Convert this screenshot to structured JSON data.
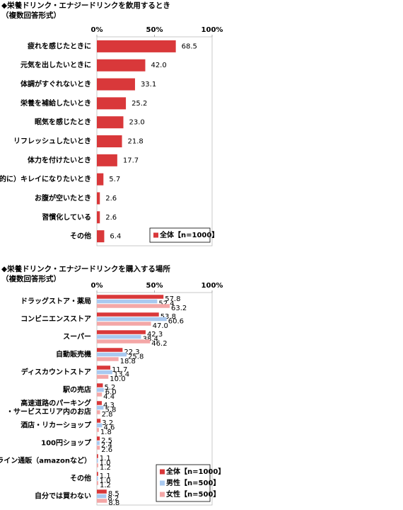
{
  "chart_data": [
    {
      "type": "hbar",
      "title": "◆栄養ドリンク・エナジードリンクを飲用するとき",
      "subtitle": "（複数回答形式）",
      "categories": [
        "疲れを感じたときに",
        "元気を出したいときに",
        "体調がすぐれないとき",
        "栄養を補給したいとき",
        "眠気を感じたとき",
        "リフレッシュしたいとき",
        "体力を付けたいとき",
        "（美容的に）キレイになりたいとき",
        "お腹が空いたとき",
        "習慣化している",
        "その他"
      ],
      "series": [
        {
          "name": "全体【n=1000】",
          "color": "#d9383a",
          "values": [
            68.5,
            42.0,
            33.1,
            25.2,
            23.0,
            21.8,
            17.7,
            5.7,
            2.6,
            2.6,
            6.4
          ],
          "value_labels": [
            "68.5",
            "42.0",
            "33.1",
            "25.2",
            "23.0",
            "21.8",
            "17.7",
            "5.7",
            "2.6",
            "2.6",
            "6.4"
          ]
        }
      ],
      "xlim": [
        0,
        100
      ],
      "xticks": [
        {
          "value": 0,
          "label": "0%"
        },
        {
          "value": 50,
          "label": "50%"
        },
        {
          "value": 100,
          "label": "100%"
        }
      ],
      "grid": false,
      "legend": "lower right"
    },
    {
      "type": "hbar",
      "title": "◆栄養ドリンク・エナジードリンクを購入する場所",
      "subtitle": "（複数回答形式）",
      "categories": [
        "ドラッグストア・薬局",
        "コンビニエンスストア",
        "スーパー",
        "自動販売機",
        "ディスカウントストア",
        "駅の売店",
        [
          "高速道路のパーキング",
          "・サービスエリア内のお店"
        ],
        "酒店・リカーショップ",
        "100円ショップ",
        "オンライン通販（amazonなど）",
        "その他",
        "自分では買わない"
      ],
      "series": [
        {
          "name": "全体【n=1000】",
          "color": "#d9383a",
          "values": [
            57.8,
            53.8,
            42.3,
            22.3,
            11.7,
            5.2,
            4.3,
            3.2,
            2.5,
            1.1,
            1.1,
            8.5
          ],
          "value_labels": [
            "57.8",
            "53.8",
            "42.3",
            "22.3",
            "11.7",
            "5.2",
            "4.3",
            "3.2",
            "2.5",
            "1.1",
            "1.1",
            "8.5"
          ]
        },
        {
          "name": "男性【n=500】",
          "color": "#a9c9f0",
          "values": [
            52.4,
            60.6,
            38.4,
            25.8,
            13.4,
            6.0,
            5.8,
            4.6,
            2.4,
            1.0,
            1.0,
            8.2
          ],
          "value_labels": [
            "52.4",
            "60.6",
            "38.4",
            "25.8",
            "13.4",
            "6.0",
            "5.8",
            "4.6",
            "2.4",
            "1.0",
            "1.0",
            "8.2"
          ]
        },
        {
          "name": "女性【n=500】",
          "color": "#f4a7a7",
          "values": [
            63.2,
            47.0,
            46.2,
            18.8,
            10.0,
            4.4,
            2.8,
            1.8,
            2.6,
            1.2,
            1.2,
            8.8
          ],
          "value_labels": [
            "63.2",
            "47.0",
            "46.2",
            "18.8",
            "10.0",
            "4.4",
            "2.8",
            "1.8",
            "2.6",
            "1.2",
            "1.2",
            "8.8"
          ]
        }
      ],
      "xlim": [
        0,
        100
      ],
      "xticks": [
        {
          "value": 0,
          "label": "0%"
        },
        {
          "value": 50,
          "label": "50%"
        },
        {
          "value": 100,
          "label": "100%"
        }
      ],
      "grid": false,
      "legend": "lower right"
    }
  ]
}
